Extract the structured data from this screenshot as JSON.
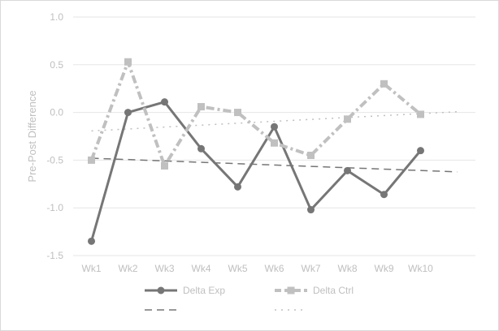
{
  "chart_data": {
    "type": "line",
    "title": "",
    "xlabel": "",
    "ylabel": "Pre-Post Difference",
    "categories": [
      "Wk1",
      "Wk2",
      "Wk3",
      "Wk4",
      "Wk5",
      "Wk6",
      "Wk7",
      "Wk8",
      "Wk9",
      "Wk10"
    ],
    "ylim": [
      -1.5,
      1.0
    ],
    "yticks": [
      "1.0",
      "0.5",
      "0.0",
      "-0.5",
      "-1.0",
      "-1.5"
    ],
    "ytick_values": [
      1.0,
      0.5,
      0.0,
      -0.5,
      -1.0,
      -1.5
    ],
    "grid": true,
    "legend_position": "bottom",
    "series": [
      {
        "name": "Delta Exp",
        "values": [
          -1.35,
          0.0,
          0.11,
          -0.38,
          -0.78,
          -0.15,
          -1.02,
          -0.61,
          -0.86,
          -0.4
        ],
        "color": "#767676",
        "style": "solid",
        "marker": "circle"
      },
      {
        "name": "Delta Ctrl",
        "values": [
          -0.5,
          0.53,
          -0.56,
          0.06,
          0.0,
          -0.32,
          -0.45,
          -0.07,
          0.3,
          -0.02
        ],
        "color": "#c0c0c0",
        "style": "dash-dot",
        "marker": "square"
      }
    ],
    "trendlines": [
      {
        "name": "",
        "of": "Delta Exp",
        "type": "linear",
        "forward_periods": 1,
        "color": "#767676",
        "style": "dashed"
      },
      {
        "name": "",
        "of": "Delta Ctrl",
        "type": "linear",
        "forward_periods": 1,
        "color": "#c0c0c0",
        "style": "dotted"
      }
    ],
    "colors": {
      "grid": "#e6e6e6",
      "text": "#bfbfbf",
      "border": "#d9d9d9"
    }
  }
}
